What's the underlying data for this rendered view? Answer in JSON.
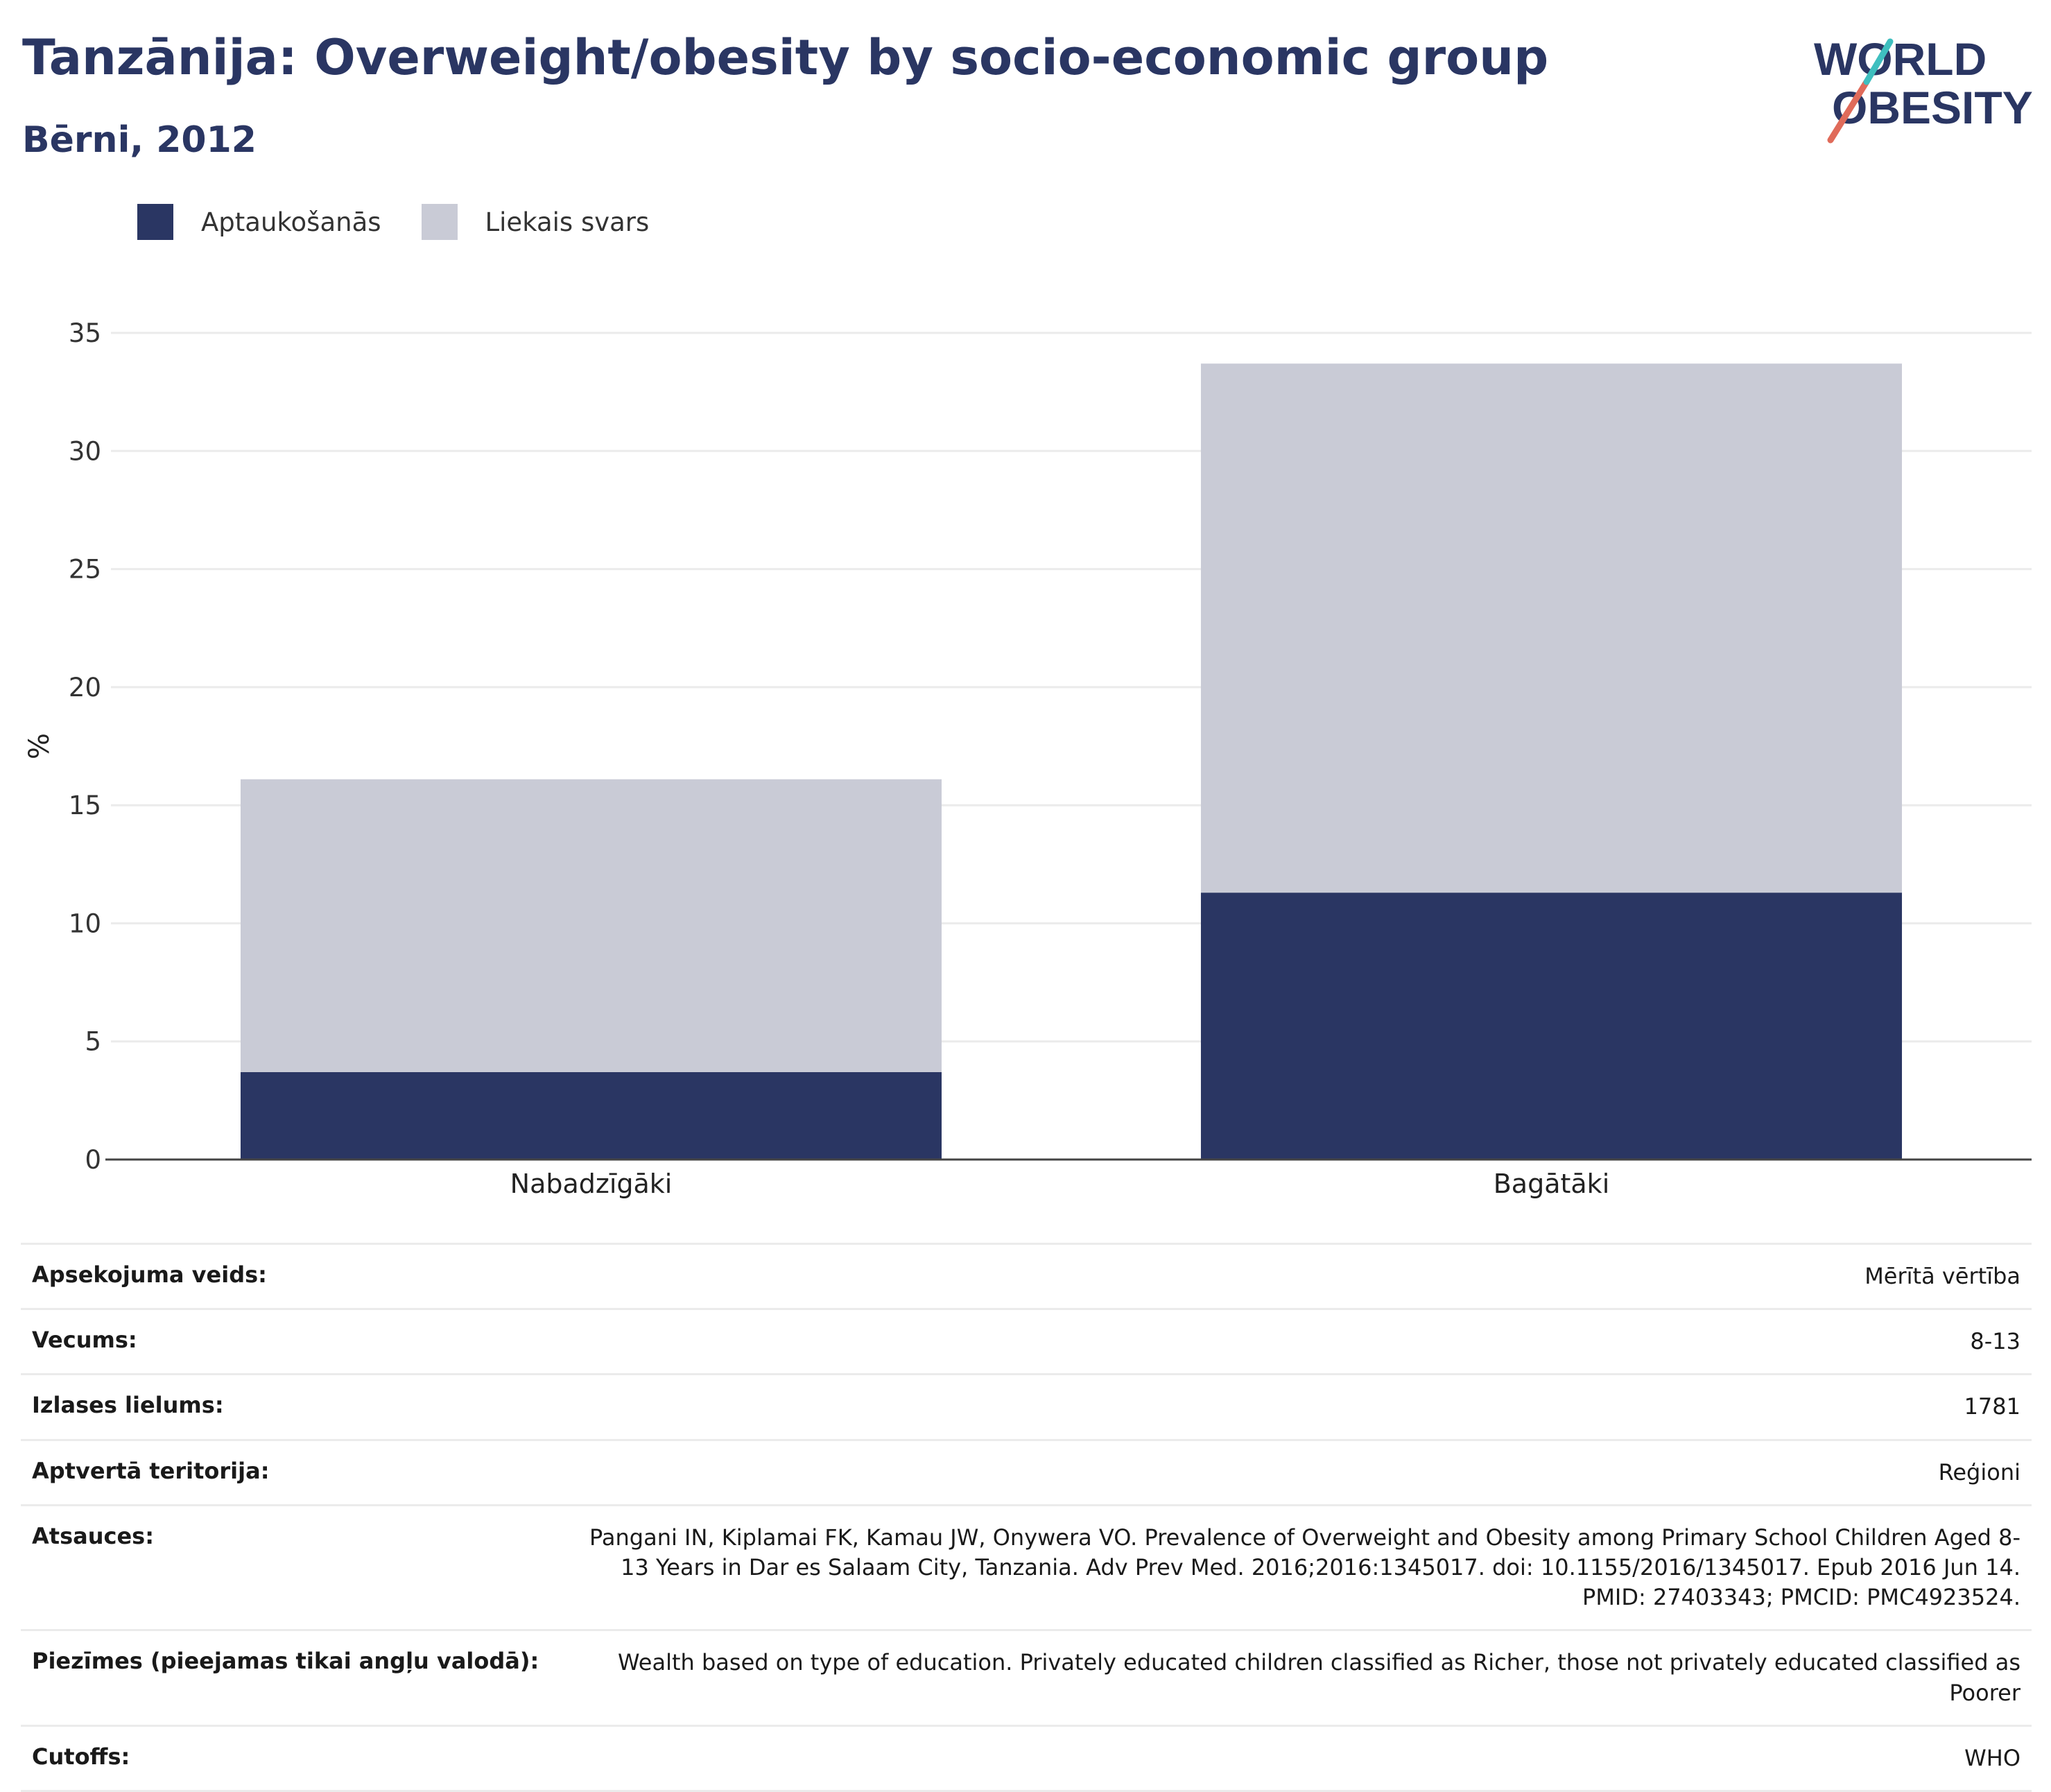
{
  "header": {
    "title": "Tanzānija: Overweight/obesity by socio-economic group",
    "subtitle": "Bērni, 2012"
  },
  "logo": {
    "line1": "WORLD",
    "line2": "OBESITY",
    "text_color": "#2a3663",
    "slash_colors": [
      "#e06b5a",
      "#3fbfbf"
    ]
  },
  "legend": [
    {
      "label": "Aptaukošanās",
      "color": "#2a3663"
    },
    {
      "label": "Liekais svars",
      "color": "#c9cbd6"
    }
  ],
  "chart_data": {
    "type": "bar",
    "stacked": true,
    "categories": [
      "Nabadzīgāki",
      "Bagātāki"
    ],
    "series": [
      {
        "name": "Aptaukošanās",
        "color": "#2a3663",
        "values": [
          3.7,
          11.3
        ]
      },
      {
        "name": "Liekais svars",
        "color": "#c9cbd6",
        "values": [
          12.4,
          22.4
        ]
      }
    ],
    "ylabel": "%",
    "ylim": [
      0,
      35
    ],
    "yticks": [
      0,
      5,
      10,
      15,
      20,
      25,
      30,
      35
    ],
    "grid": true,
    "legend_position": "top-left"
  },
  "meta": [
    {
      "label": "Apsekojuma veids:",
      "value": "Mērītā vērtība"
    },
    {
      "label": "Vecums:",
      "value": "8-13"
    },
    {
      "label": "Izlases lielums:",
      "value": "1781"
    },
    {
      "label": "Aptvertā teritorija:",
      "value": "Reģioni"
    },
    {
      "label": "Atsauces:",
      "value": "Pangani IN, Kiplamai FK, Kamau JW, Onywera VO. Prevalence of Overweight and Obesity among Primary School Children Aged 8-13 Years in Dar es Salaam City, Tanzania. Adv Prev Med. 2016;2016:1345017. doi: 10.1155/2016/1345017. Epub 2016 Jun 14. PMID: 27403343; PMCID: PMC4923524."
    },
    {
      "label": "Piezīmes (pieejamas tikai angļu valodā):",
      "value": "Wealth based on type of education. Privately educated children classified as Richer, those not privately educated classified as Poorer"
    },
    {
      "label": "Cutoffs:",
      "value": "WHO"
    }
  ]
}
